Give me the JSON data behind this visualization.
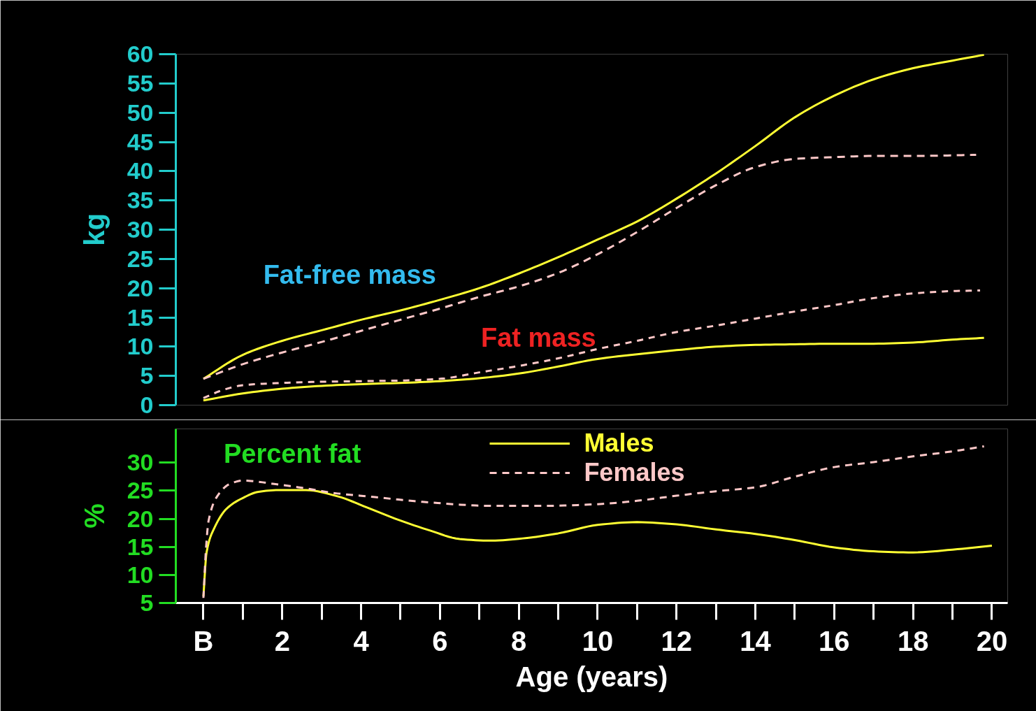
{
  "chart_data": [
    {
      "type": "line",
      "xlim": [
        -0.7,
        20.4
      ],
      "ylim": [
        0,
        60
      ],
      "yticks": [
        0,
        5,
        10,
        15,
        20,
        25,
        30,
        35,
        40,
        45,
        50,
        55,
        60
      ],
      "ylabel": "kg",
      "tick_labels": "y",
      "series": [
        {
          "color": "#ffff33",
          "line_style": "solid",
          "x": [
            0,
            1,
            2,
            3,
            4,
            5,
            6,
            7,
            8,
            9,
            10,
            11,
            12,
            13,
            14,
            15,
            16,
            17,
            18,
            19,
            19.8
          ],
          "values": [
            4.5,
            8.6,
            11.0,
            12.8,
            14.6,
            16.2,
            18.0,
            20.0,
            22.5,
            25.3,
            28.3,
            31.4,
            35.3,
            39.6,
            44.3,
            49.2,
            52.9,
            55.7,
            57.6,
            58.9,
            59.9
          ]
        },
        {
          "color": "#ffc8c8",
          "line_style": "dashed",
          "x": [
            0,
            1,
            2,
            3,
            4,
            5,
            6,
            7,
            8,
            9,
            10,
            11,
            12,
            13,
            14,
            15,
            16,
            17,
            18,
            19,
            19.6
          ],
          "values": [
            4.5,
            7.0,
            9.0,
            10.8,
            12.7,
            14.6,
            16.5,
            18.5,
            20.3,
            22.6,
            25.8,
            29.6,
            33.7,
            37.6,
            40.7,
            42.1,
            42.4,
            42.6,
            42.6,
            42.7,
            42.8
          ]
        },
        {
          "color": "#ffff33",
          "line_style": "solid",
          "x": [
            0,
            1,
            2,
            3,
            4,
            5,
            6,
            7,
            8,
            9,
            10,
            11,
            12,
            13,
            14,
            15,
            16,
            17,
            18,
            19,
            19.8
          ],
          "values": [
            0.8,
            2.0,
            2.8,
            3.3,
            3.6,
            3.8,
            4.1,
            4.6,
            5.4,
            6.6,
            7.9,
            8.7,
            9.4,
            10.0,
            10.3,
            10.4,
            10.5,
            10.5,
            10.7,
            11.2,
            11.5
          ]
        },
        {
          "color": "#ffc8c8",
          "line_style": "dashed",
          "x": [
            0,
            0.5,
            1,
            2,
            3,
            4,
            5,
            6,
            7,
            8,
            9,
            10,
            11,
            12,
            13,
            14,
            15,
            16,
            17,
            18,
            19,
            19.7
          ],
          "values": [
            1.2,
            2.6,
            3.4,
            3.8,
            4.0,
            4.1,
            4.2,
            4.5,
            5.6,
            6.7,
            8.0,
            9.6,
            11.0,
            12.5,
            13.6,
            14.8,
            16.0,
            17.1,
            18.3,
            19.1,
            19.5,
            19.6
          ]
        }
      ],
      "annotations": [
        "Fat-free mass",
        "Fat mass"
      ]
    },
    {
      "type": "line",
      "xlim": [
        -0.7,
        20.4
      ],
      "xticks": [
        {
          "value": 0,
          "label": "B"
        },
        2,
        4,
        6,
        8,
        10,
        12,
        14,
        16,
        18,
        20
      ],
      "ylim": [
        5,
        36
      ],
      "yticks": [
        5,
        10,
        15,
        20,
        25,
        30
      ],
      "xlabel": "Age (years)",
      "ylabel": "%",
      "legend": "top",
      "series": [
        {
          "name": "Males",
          "color": "#ffff33",
          "line_style": "solid",
          "x": [
            0,
            0.08,
            0.28,
            0.59,
            1.0,
            1.4,
            1.9,
            2.6,
            3.4,
            4.15,
            4.95,
            5.75,
            6.5,
            7.3,
            8.1,
            9,
            10,
            11,
            12,
            13,
            14,
            15,
            16,
            17,
            18,
            19,
            20
          ],
          "values": [
            6.2,
            14.0,
            18.4,
            21.8,
            23.7,
            24.8,
            25.1,
            25.1,
            24.0,
            22.0,
            19.8,
            17.9,
            16.4,
            16.1,
            16.5,
            17.4,
            18.9,
            19.4,
            19.0,
            18.1,
            17.3,
            16.2,
            14.9,
            14.2,
            14.0,
            14.5,
            15.2
          ]
        },
        {
          "name": "Females",
          "color": "#ffc8c8",
          "line_style": "dashed",
          "x": [
            0,
            0.07,
            0.13,
            0.35,
            0.67,
            1.0,
            1.8,
            2.6,
            3.4,
            4.15,
            5.75,
            7.3,
            8.65,
            10,
            11,
            12,
            13,
            14,
            15,
            16,
            17,
            18,
            19,
            19.8
          ],
          "values": [
            5.9,
            15.1,
            19.6,
            24.0,
            26.2,
            26.8,
            26.2,
            25.4,
            24.5,
            24.0,
            22.9,
            22.3,
            22.3,
            22.6,
            23.2,
            24.1,
            24.9,
            25.6,
            27.5,
            29.2,
            30.1,
            31.1,
            32.0,
            32.9
          ]
        }
      ],
      "annotations": [
        "Percent fat"
      ]
    }
  ]
}
